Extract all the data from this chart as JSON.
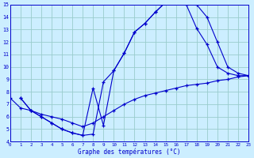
{
  "xlabel": "Graphe des températures (°C)",
  "bg_color": "#cceeff",
  "line_color": "#0000cc",
  "grid_color": "#99cccc",
  "xlim": [
    0,
    23
  ],
  "ylim": [
    4,
    15
  ],
  "xticks": [
    0,
    1,
    2,
    3,
    4,
    5,
    6,
    7,
    8,
    9,
    10,
    11,
    12,
    13,
    14,
    15,
    16,
    17,
    18,
    19,
    20,
    21,
    22,
    23
  ],
  "yticks": [
    4,
    5,
    6,
    7,
    8,
    9,
    10,
    11,
    12,
    13,
    14,
    15
  ],
  "line1_x": [
    1,
    2,
    3,
    4,
    5,
    6,
    7,
    8,
    9,
    10,
    11,
    12,
    13,
    14,
    15,
    16,
    17,
    18,
    19,
    20,
    21,
    22,
    23
  ],
  "line1_y": [
    7.5,
    6.5,
    6.0,
    5.5,
    5.0,
    4.7,
    4.5,
    8.3,
    5.3,
    9.7,
    11.1,
    12.8,
    13.5,
    14.4,
    15.2,
    15.3,
    15.2,
    15.0,
    14.0,
    12.0,
    10.0,
    9.5,
    9.3
  ],
  "line2_x": [
    1,
    2,
    3,
    4,
    5,
    6,
    7,
    8,
    9,
    10,
    11,
    12,
    13,
    14,
    15,
    16,
    17,
    18,
    19,
    20,
    21,
    22,
    23
  ],
  "line2_y": [
    7.5,
    6.5,
    6.0,
    5.5,
    5.0,
    4.7,
    4.5,
    4.6,
    8.8,
    9.7,
    11.1,
    12.8,
    13.5,
    14.4,
    15.2,
    15.3,
    15.0,
    13.1,
    11.8,
    10.0,
    9.5,
    9.3,
    9.3
  ],
  "line3_x": [
    0,
    1,
    2,
    3,
    4,
    5,
    6,
    7,
    8,
    9,
    10,
    11,
    12,
    13,
    14,
    15,
    16,
    17,
    18,
    19,
    20,
    21,
    22,
    23
  ],
  "line3_y": [
    7.5,
    6.7,
    6.5,
    6.2,
    6.0,
    5.8,
    5.5,
    5.2,
    5.5,
    6.0,
    6.5,
    7.0,
    7.4,
    7.7,
    7.9,
    8.1,
    8.3,
    8.5,
    8.6,
    8.7,
    8.9,
    9.0,
    9.2,
    9.3
  ]
}
